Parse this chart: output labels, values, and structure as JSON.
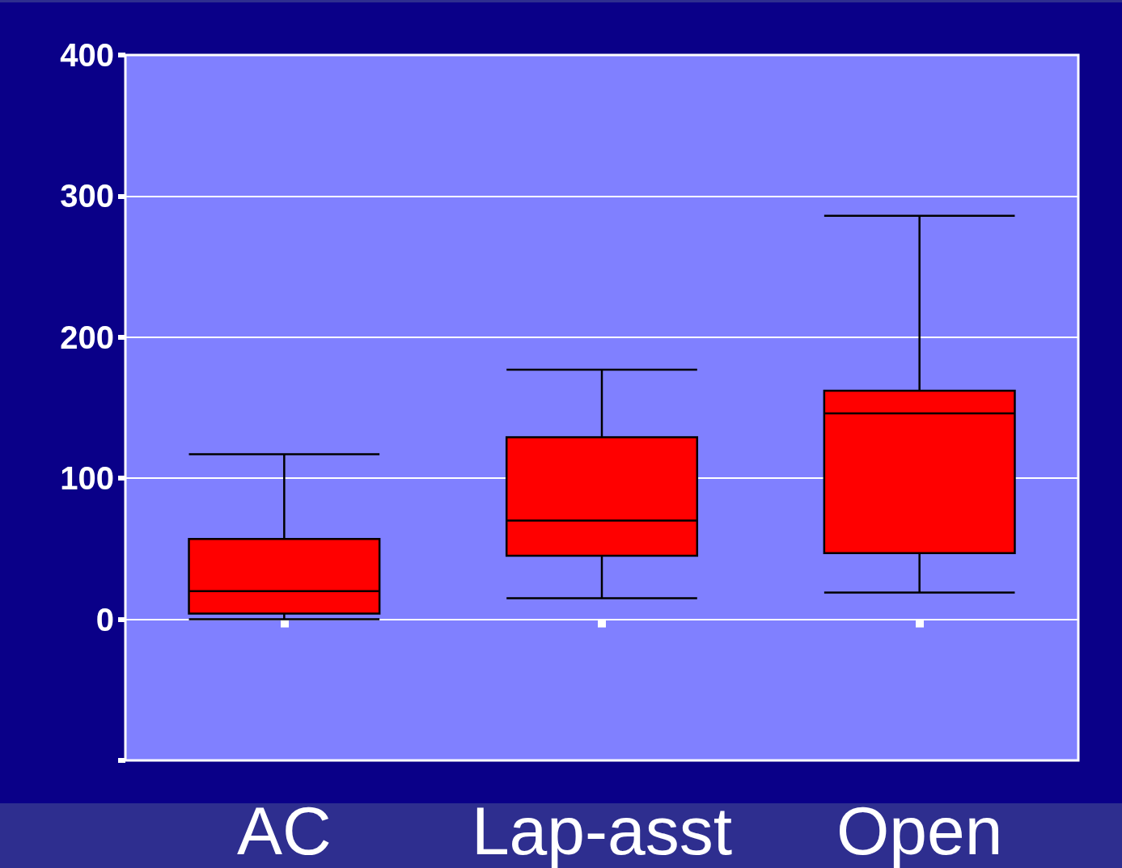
{
  "chart_data": {
    "type": "box",
    "categories": [
      "AC",
      "Lap-asst",
      "Open"
    ],
    "boxes": [
      {
        "low": 0,
        "q1": 4,
        "median": 20,
        "q3": 57,
        "high": 117
      },
      {
        "low": 15,
        "q1": 45,
        "median": 70,
        "q3": 129,
        "high": 177
      },
      {
        "low": 19,
        "q1": 47,
        "median": 146,
        "q3": 162,
        "high": 286
      }
    ],
    "color": "#ff0000",
    "ylim": [
      -100,
      400
    ],
    "yticks": [
      {
        "value": -100,
        "label": null
      },
      0,
      100,
      200,
      300,
      400
    ],
    "grid": "y"
  }
}
